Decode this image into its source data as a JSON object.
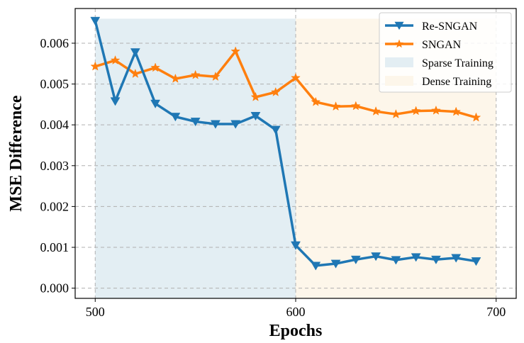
{
  "chart_data": {
    "type": "line",
    "xlabel": "Epochs",
    "ylabel": "MSE Difference",
    "xlim": [
      490,
      710
    ],
    "ylim": [
      -0.00025,
      0.00685
    ],
    "xticks": [
      500,
      600,
      700
    ],
    "yticks": [
      0.0,
      0.001,
      0.002,
      0.003,
      0.004,
      0.005,
      0.006
    ],
    "ytick_labels": [
      "0.000",
      "0.001",
      "0.002",
      "0.003",
      "0.004",
      "0.005",
      "0.006"
    ],
    "xtick_labels": [
      "500",
      "600",
      "700"
    ],
    "grid": true,
    "legend_position": "top-right",
    "x": [
      500,
      510,
      520,
      530,
      540,
      550,
      560,
      570,
      580,
      590,
      600,
      610,
      620,
      630,
      640,
      650,
      660,
      670,
      680,
      690
    ],
    "series": [
      {
        "name": "Re-SNGAN",
        "color": "#1f77b4",
        "marker": "triangle-down",
        "values": [
          0.00655,
          0.00458,
          0.00578,
          0.00452,
          0.0042,
          0.00408,
          0.00402,
          0.00402,
          0.00422,
          0.00388,
          0.00105,
          0.00055,
          0.0006,
          0.0007,
          0.00078,
          0.00069,
          0.00076,
          0.0007,
          0.00074,
          0.00066
        ]
      },
      {
        "name": "SNGAN",
        "color": "#ff7f0e",
        "marker": "star",
        "values": [
          0.00543,
          0.00558,
          0.00525,
          0.0054,
          0.00513,
          0.00522,
          0.00518,
          0.0058,
          0.00468,
          0.0048,
          0.00515,
          0.00456,
          0.00445,
          0.00446,
          0.00433,
          0.00426,
          0.00434,
          0.00435,
          0.00432,
          0.00418
        ]
      }
    ],
    "regions": [
      {
        "name": "Sparse Training",
        "x_start": 500,
        "x_end": 600,
        "y_top": 0.0066,
        "color": "#e3eef3"
      },
      {
        "name": "Dense Training",
        "x_start": 600,
        "x_end": 700,
        "y_top": 0.0066,
        "color": "#fdf6ea"
      }
    ]
  }
}
